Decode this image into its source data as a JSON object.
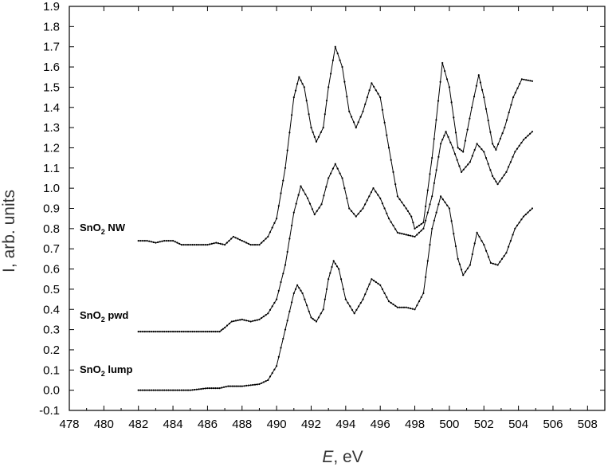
{
  "chart_data": {
    "type": "line",
    "title": "",
    "xlabel": {
      "italic": "E",
      "rest": ", eV"
    },
    "ylabel": "I, arb. units",
    "xlim": [
      478,
      509
    ],
    "ylim": [
      -0.1,
      1.9
    ],
    "xticks": [
      478,
      480,
      482,
      484,
      486,
      488,
      490,
      492,
      494,
      496,
      498,
      500,
      502,
      504,
      506,
      508
    ],
    "yticks": [
      "-0.1",
      "0.0",
      "0.1",
      "0.2",
      "0.3",
      "0.4",
      "0.5",
      "0.6",
      "0.7",
      "0.8",
      "0.9",
      "1.0",
      "1.1",
      "1.2",
      "1.3",
      "1.4",
      "1.5",
      "1.6",
      "1.7",
      "1.8",
      "1.9"
    ],
    "grid": false,
    "series": [
      {
        "name": "SnO2 NW",
        "label": {
          "base": "SnO",
          "sub": "2",
          "rest": " NW"
        },
        "points": [
          [
            482,
            0.74
          ],
          [
            482.5,
            0.74
          ],
          [
            483,
            0.73
          ],
          [
            483.5,
            0.74
          ],
          [
            484,
            0.74
          ],
          [
            484.5,
            0.72
          ],
          [
            485,
            0.72
          ],
          [
            485.5,
            0.72
          ],
          [
            486,
            0.72
          ],
          [
            486.5,
            0.73
          ],
          [
            487,
            0.72
          ],
          [
            487.5,
            0.76
          ],
          [
            488,
            0.74
          ],
          [
            488.5,
            0.72
          ],
          [
            489,
            0.72
          ],
          [
            489.5,
            0.76
          ],
          [
            490,
            0.85
          ],
          [
            490.5,
            1.1
          ],
          [
            491,
            1.45
          ],
          [
            491.3,
            1.55
          ],
          [
            491.6,
            1.5
          ],
          [
            492,
            1.3
          ],
          [
            492.3,
            1.23
          ],
          [
            492.7,
            1.3
          ],
          [
            493,
            1.5
          ],
          [
            493.4,
            1.7
          ],
          [
            493.8,
            1.6
          ],
          [
            494.2,
            1.38
          ],
          [
            494.6,
            1.3
          ],
          [
            495,
            1.38
          ],
          [
            495.5,
            1.52
          ],
          [
            496,
            1.45
          ],
          [
            496.5,
            1.2
          ],
          [
            497,
            0.96
          ],
          [
            497.5,
            0.9
          ],
          [
            497.8,
            0.86
          ],
          [
            498,
            0.8
          ],
          [
            498.5,
            0.83
          ],
          [
            499,
            1.15
          ],
          [
            499.6,
            1.62
          ],
          [
            500,
            1.5
          ],
          [
            500.5,
            1.2
          ],
          [
            500.8,
            1.18
          ],
          [
            501.3,
            1.4
          ],
          [
            501.7,
            1.56
          ],
          [
            502,
            1.45
          ],
          [
            502.5,
            1.22
          ],
          [
            502.7,
            1.19
          ],
          [
            503.2,
            1.3
          ],
          [
            503.7,
            1.45
          ],
          [
            504.2,
            1.54
          ],
          [
            504.8,
            1.53
          ]
        ]
      },
      {
        "name": "SnO2 pwd",
        "label": {
          "base": "SnO",
          "sub": "2",
          "rest": " pwd"
        },
        "points": [
          [
            482,
            0.29
          ],
          [
            483,
            0.29
          ],
          [
            484,
            0.29
          ],
          [
            485,
            0.29
          ],
          [
            486,
            0.29
          ],
          [
            486.7,
            0.29
          ],
          [
            487,
            0.31
          ],
          [
            487.4,
            0.34
          ],
          [
            488,
            0.35
          ],
          [
            488.5,
            0.34
          ],
          [
            489,
            0.35
          ],
          [
            489.5,
            0.38
          ],
          [
            490,
            0.45
          ],
          [
            490.5,
            0.62
          ],
          [
            491,
            0.88
          ],
          [
            491.4,
            1.01
          ],
          [
            491.8,
            0.95
          ],
          [
            492.2,
            0.87
          ],
          [
            492.6,
            0.92
          ],
          [
            493,
            1.05
          ],
          [
            493.4,
            1.12
          ],
          [
            493.8,
            1.05
          ],
          [
            494.2,
            0.9
          ],
          [
            494.6,
            0.86
          ],
          [
            495,
            0.9
          ],
          [
            495.6,
            1.0
          ],
          [
            496,
            0.95
          ],
          [
            496.5,
            0.85
          ],
          [
            497,
            0.78
          ],
          [
            497.5,
            0.77
          ],
          [
            498,
            0.76
          ],
          [
            498.5,
            0.8
          ],
          [
            499,
            0.96
          ],
          [
            499.5,
            1.22
          ],
          [
            499.8,
            1.28
          ],
          [
            500.2,
            1.2
          ],
          [
            500.7,
            1.08
          ],
          [
            501.2,
            1.13
          ],
          [
            501.6,
            1.22
          ],
          [
            502,
            1.18
          ],
          [
            502.5,
            1.06
          ],
          [
            502.8,
            1.02
          ],
          [
            503.3,
            1.08
          ],
          [
            503.8,
            1.18
          ],
          [
            504.3,
            1.24
          ],
          [
            504.8,
            1.28
          ]
        ]
      },
      {
        "name": "SnO2 lump",
        "label": {
          "base": "SnO",
          "sub": "2",
          "rest": " lump"
        },
        "points": [
          [
            482,
            0.0
          ],
          [
            483,
            0.0
          ],
          [
            484,
            0.0
          ],
          [
            485,
            0.0
          ],
          [
            486,
            0.01
          ],
          [
            486.7,
            0.01
          ],
          [
            487.2,
            0.02
          ],
          [
            488,
            0.02
          ],
          [
            489,
            0.03
          ],
          [
            489.5,
            0.05
          ],
          [
            490,
            0.12
          ],
          [
            490.5,
            0.3
          ],
          [
            491,
            0.48
          ],
          [
            491.2,
            0.52
          ],
          [
            491.5,
            0.48
          ],
          [
            492,
            0.36
          ],
          [
            492.3,
            0.34
          ],
          [
            492.7,
            0.4
          ],
          [
            493,
            0.55
          ],
          [
            493.3,
            0.64
          ],
          [
            493.6,
            0.6
          ],
          [
            494,
            0.45
          ],
          [
            494.5,
            0.38
          ],
          [
            495,
            0.45
          ],
          [
            495.5,
            0.55
          ],
          [
            496,
            0.52
          ],
          [
            496.5,
            0.44
          ],
          [
            497,
            0.41
          ],
          [
            497.5,
            0.41
          ],
          [
            498,
            0.4
          ],
          [
            498.5,
            0.48
          ],
          [
            499,
            0.8
          ],
          [
            499.5,
            0.96
          ],
          [
            500,
            0.9
          ],
          [
            500.5,
            0.65
          ],
          [
            500.8,
            0.57
          ],
          [
            501.2,
            0.62
          ],
          [
            501.6,
            0.78
          ],
          [
            502,
            0.72
          ],
          [
            502.4,
            0.63
          ],
          [
            502.8,
            0.62
          ],
          [
            503.3,
            0.68
          ],
          [
            503.8,
            0.8
          ],
          [
            504.3,
            0.86
          ],
          [
            504.8,
            0.9
          ]
        ]
      }
    ]
  }
}
